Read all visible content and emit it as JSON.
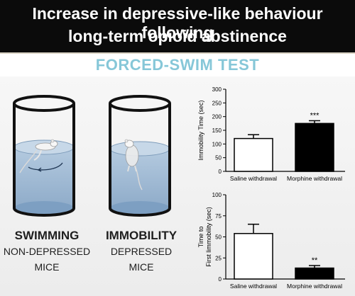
{
  "header": {
    "line1": "Increase in depressive-like behaviour following",
    "line2": "long-term opioid abstinence"
  },
  "subtitle": "FORCED-SWIM TEST",
  "left_caption": {
    "line1": "SWIMMING",
    "line2": "NON-DEPRESSED",
    "line3": "MICE"
  },
  "right_caption": {
    "line1": "IMMOBILITY",
    "line2": "DEPRESSED",
    "line3": "MICE"
  },
  "colors": {
    "water": "#8fb0cf",
    "cylinder": "#111111",
    "bar_control": "#ffffff",
    "bar_treated": "#000000",
    "subtitle": "#86c7d8"
  },
  "chart_data": [
    {
      "type": "bar",
      "categories": [
        "Saline withdrawal",
        "Morphine withdrawal"
      ],
      "values": [
        120,
        175
      ],
      "errors": [
        14,
        10
      ],
      "significance": [
        "",
        "***"
      ],
      "ylabel": "Immobility Time (sec)",
      "ylim": [
        0,
        300
      ],
      "yticks": [
        0,
        50,
        100,
        150,
        200,
        250,
        300
      ],
      "grid": false
    },
    {
      "type": "bar",
      "categories": [
        "Saline withdrawal",
        "Morphine withdrawal"
      ],
      "values": [
        54,
        13
      ],
      "errors": [
        11,
        3
      ],
      "significance": [
        "",
        "**"
      ],
      "ylabel": "Time to\nFirst limmobility (sec)",
      "ylabel_lines": [
        "Time to",
        "First limmobility (sec)"
      ],
      "ylim": [
        0,
        100
      ],
      "yticks": [
        0,
        25,
        50,
        75,
        100
      ],
      "grid": false
    }
  ]
}
